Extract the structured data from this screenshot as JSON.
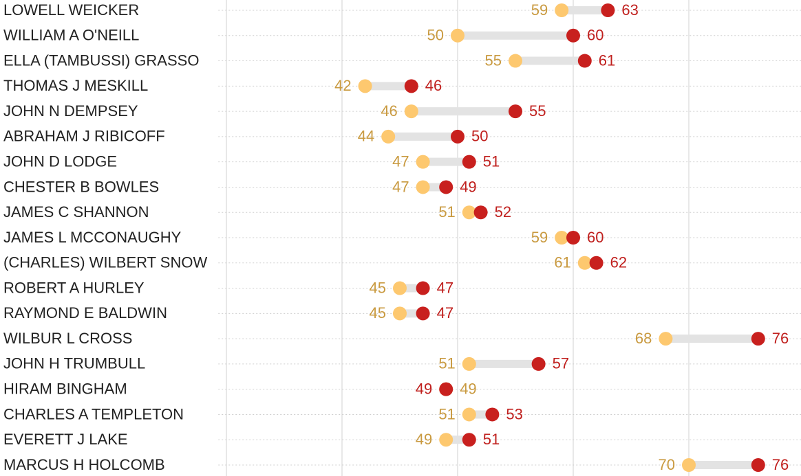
{
  "chart_data": {
    "type": "dumbbell",
    "categories": [
      "LOWELL WEICKER",
      "WILLIAM A O'NEILL",
      "ELLA (TAMBUSSI) GRASSO",
      "THOMAS J MESKILL",
      "JOHN N DEMPSEY",
      "ABRAHAM J RIBICOFF",
      "JOHN D LODGE",
      "CHESTER B BOWLES",
      "JAMES C SHANNON",
      "JAMES L MCCONAUGHY",
      "(CHARLES) WILBERT SNOW",
      "ROBERT A HURLEY",
      "RAYMOND E BALDWIN",
      "WILBUR L CROSS",
      "JOHN H TRUMBULL",
      "HIRAM BINGHAM",
      "CHARLES A TEMPLETON",
      "EVERETT J LAKE",
      "MARCUS H HOLCOMB"
    ],
    "series": [
      {
        "color": "#fdc86f",
        "label_color": "#c99a40",
        "values": [
          59,
          50,
          55,
          42,
          46,
          44,
          47,
          47,
          51,
          59,
          61,
          45,
          45,
          68,
          51,
          49,
          51,
          49,
          70
        ]
      },
      {
        "color": "#c8201e",
        "label_color": "#c0201e",
        "values": [
          63,
          60,
          61,
          46,
          55,
          50,
          51,
          49,
          52,
          60,
          62,
          47,
          47,
          76,
          57,
          49,
          53,
          51,
          76
        ]
      }
    ],
    "xlim": [
      29.3,
      79.6
    ],
    "xticks": [
      30,
      40,
      50,
      60,
      70
    ],
    "grid": true
  }
}
